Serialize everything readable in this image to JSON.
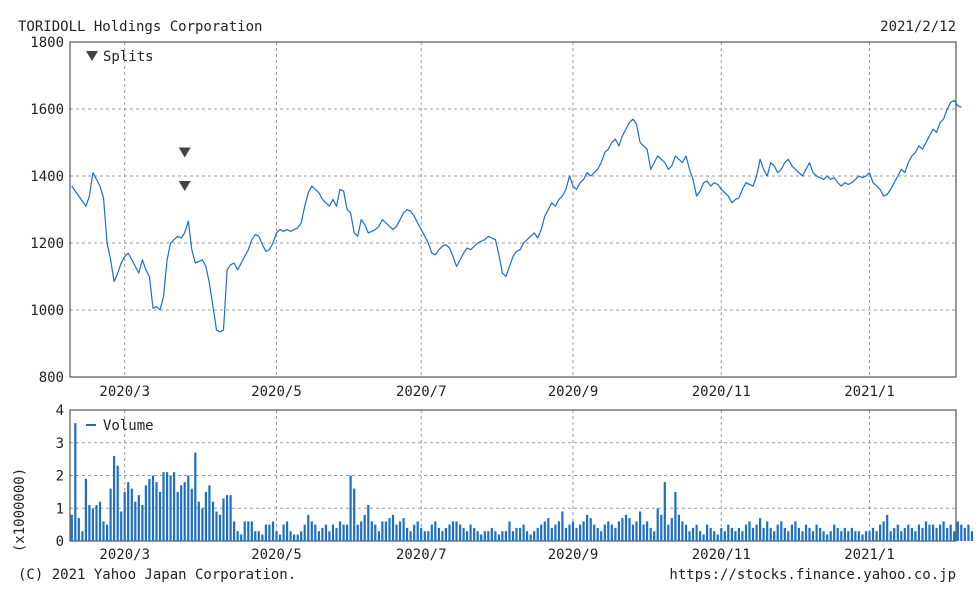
{
  "header": {
    "company": "TORIDOLL Holdings Corporation",
    "date": "2021/2/12"
  },
  "footer": {
    "copyright": "(C) 2021 Yahoo Japan Corporation.",
    "url": "https://stocks.finance.yahoo.co.jp"
  },
  "colors": {
    "line": "#1f6fbf",
    "volume": "#1f6fbf",
    "marker": "#444444"
  },
  "chart_data": [
    {
      "type": "line",
      "legend": "Splits",
      "ylim": [
        800,
        1800
      ],
      "yticks": [
        800,
        1000,
        1200,
        1400,
        1600,
        1800
      ],
      "xtick_labels": [
        "2020/3",
        "2020/5",
        "2020/7",
        "2020/9",
        "2020/11",
        "2021/1"
      ],
      "xtick_positions": [
        15,
        58,
        99,
        142,
        184,
        226
      ],
      "x_total": 251,
      "split_markers": [
        {
          "x": 32,
          "y": 1470
        },
        {
          "x": 32,
          "y": 1370
        }
      ],
      "values": [
        1370,
        1355,
        1340,
        1325,
        1310,
        1340,
        1410,
        1390,
        1370,
        1335,
        1200,
        1150,
        1085,
        1110,
        1140,
        1160,
        1170,
        1150,
        1130,
        1110,
        1150,
        1120,
        1100,
        1005,
        1010,
        1000,
        1040,
        1150,
        1200,
        1210,
        1220,
        1215,
        1230,
        1265,
        1180,
        1140,
        1145,
        1150,
        1130,
        1080,
        1010,
        940,
        935,
        940,
        1120,
        1135,
        1140,
        1120,
        1140,
        1160,
        1180,
        1210,
        1225,
        1220,
        1195,
        1175,
        1180,
        1200,
        1230,
        1240,
        1235,
        1240,
        1235,
        1240,
        1245,
        1260,
        1310,
        1350,
        1370,
        1360,
        1350,
        1330,
        1320,
        1310,
        1330,
        1310,
        1360,
        1355,
        1300,
        1290,
        1230,
        1220,
        1270,
        1255,
        1230,
        1235,
        1240,
        1250,
        1270,
        1260,
        1250,
        1240,
        1250,
        1270,
        1290,
        1300,
        1295,
        1280,
        1260,
        1240,
        1220,
        1200,
        1170,
        1165,
        1180,
        1190,
        1195,
        1185,
        1160,
        1130,
        1150,
        1170,
        1185,
        1180,
        1190,
        1200,
        1205,
        1210,
        1220,
        1215,
        1210,
        1165,
        1110,
        1100,
        1130,
        1160,
        1175,
        1180,
        1200,
        1210,
        1220,
        1230,
        1215,
        1240,
        1280,
        1300,
        1320,
        1310,
        1330,
        1340,
        1360,
        1400,
        1370,
        1360,
        1380,
        1390,
        1410,
        1400,
        1410,
        1420,
        1440,
        1470,
        1480,
        1500,
        1510,
        1490,
        1520,
        1540,
        1560,
        1570,
        1555,
        1500,
        1490,
        1480,
        1420,
        1440,
        1460,
        1450,
        1440,
        1420,
        1430,
        1460,
        1450,
        1440,
        1460,
        1420,
        1390,
        1340,
        1355,
        1380,
        1385,
        1370,
        1380,
        1375,
        1360,
        1350,
        1340,
        1320,
        1330,
        1335,
        1360,
        1380,
        1375,
        1370,
        1400,
        1450,
        1420,
        1400,
        1440,
        1430,
        1410,
        1420,
        1440,
        1450,
        1430,
        1420,
        1410,
        1400,
        1420,
        1440,
        1410,
        1400,
        1395,
        1390,
        1400,
        1390,
        1395,
        1380,
        1370,
        1380,
        1375,
        1380,
        1390,
        1400,
        1395,
        1400,
        1410,
        1380,
        1370,
        1360,
        1340,
        1345,
        1360,
        1380,
        1400,
        1420,
        1410,
        1440,
        1460,
        1470,
        1490,
        1480,
        1500,
        1520,
        1540,
        1530,
        1560,
        1570,
        1600,
        1620,
        1625,
        1610,
        1605
      ]
    },
    {
      "type": "bar",
      "legend": "Volume",
      "ylabel": "(x1000000)",
      "ylim": [
        0,
        4
      ],
      "yticks": [
        0,
        1,
        2,
        3,
        4
      ],
      "xtick_labels": [
        "2020/3",
        "2020/5",
        "2020/7",
        "2020/9",
        "2020/11",
        "2021/1"
      ],
      "xtick_positions": [
        15,
        58,
        99,
        142,
        184,
        226
      ],
      "values": [
        0.8,
        3.6,
        0.7,
        0.3,
        1.9,
        1.1,
        1.0,
        1.1,
        1.2,
        0.6,
        0.5,
        1.6,
        2.6,
        2.3,
        0.9,
        1.5,
        1.8,
        1.6,
        1.2,
        1.4,
        1.1,
        1.7,
        1.9,
        2.0,
        1.8,
        1.5,
        2.1,
        2.1,
        2.0,
        2.1,
        1.5,
        1.7,
        1.8,
        2.0,
        1.6,
        2.7,
        1.2,
        1.0,
        1.5,
        1.7,
        1.2,
        0.9,
        0.8,
        1.3,
        1.4,
        1.4,
        0.6,
        0.3,
        0.2,
        0.6,
        0.6,
        0.6,
        0.3,
        0.3,
        0.2,
        0.5,
        0.5,
        0.6,
        0.3,
        0.2,
        0.5,
        0.6,
        0.3,
        0.2,
        0.2,
        0.3,
        0.5,
        0.8,
        0.6,
        0.5,
        0.3,
        0.4,
        0.5,
        0.3,
        0.5,
        0.4,
        0.6,
        0.5,
        0.5,
        2.0,
        1.6,
        0.5,
        0.6,
        0.8,
        1.1,
        0.6,
        0.5,
        0.3,
        0.6,
        0.6,
        0.7,
        0.8,
        0.5,
        0.6,
        0.7,
        0.4,
        0.3,
        0.5,
        0.6,
        0.4,
        0.3,
        0.3,
        0.5,
        0.6,
        0.4,
        0.3,
        0.4,
        0.5,
        0.6,
        0.6,
        0.5,
        0.4,
        0.3,
        0.5,
        0.4,
        0.3,
        0.2,
        0.3,
        0.3,
        0.4,
        0.3,
        0.2,
        0.3,
        0.3,
        0.6,
        0.3,
        0.4,
        0.4,
        0.5,
        0.3,
        0.2,
        0.3,
        0.4,
        0.5,
        0.6,
        0.7,
        0.4,
        0.5,
        0.6,
        0.9,
        0.4,
        0.5,
        0.6,
        0.4,
        0.5,
        0.6,
        0.8,
        0.7,
        0.5,
        0.4,
        0.3,
        0.5,
        0.6,
        0.5,
        0.4,
        0.6,
        0.7,
        0.8,
        0.7,
        0.5,
        0.6,
        0.9,
        0.5,
        0.6,
        0.4,
        0.3,
        1.0,
        0.8,
        1.8,
        0.5,
        0.7,
        1.5,
        0.8,
        0.6,
        0.5,
        0.3,
        0.4,
        0.5,
        0.3,
        0.2,
        0.5,
        0.4,
        0.3,
        0.2,
        0.4,
        0.3,
        0.5,
        0.4,
        0.3,
        0.4,
        0.3,
        0.5,
        0.6,
        0.4,
        0.5,
        0.7,
        0.4,
        0.6,
        0.4,
        0.3,
        0.5,
        0.6,
        0.4,
        0.3,
        0.5,
        0.6,
        0.4,
        0.3,
        0.5,
        0.4,
        0.3,
        0.5,
        0.4,
        0.3,
        0.2,
        0.3,
        0.5,
        0.4,
        0.3,
        0.4,
        0.3,
        0.4,
        0.3,
        0.3,
        0.2,
        0.3,
        0.3,
        0.4,
        0.3,
        0.5,
        0.6,
        0.8,
        0.3,
        0.4,
        0.5,
        0.3,
        0.4,
        0.5,
        0.4,
        0.3,
        0.5,
        0.4,
        0.6,
        0.5,
        0.5,
        0.4,
        0.5,
        0.6,
        0.4,
        0.5,
        0.3,
        0.6,
        0.5,
        0.4,
        0.5,
        0.3
      ]
    }
  ]
}
